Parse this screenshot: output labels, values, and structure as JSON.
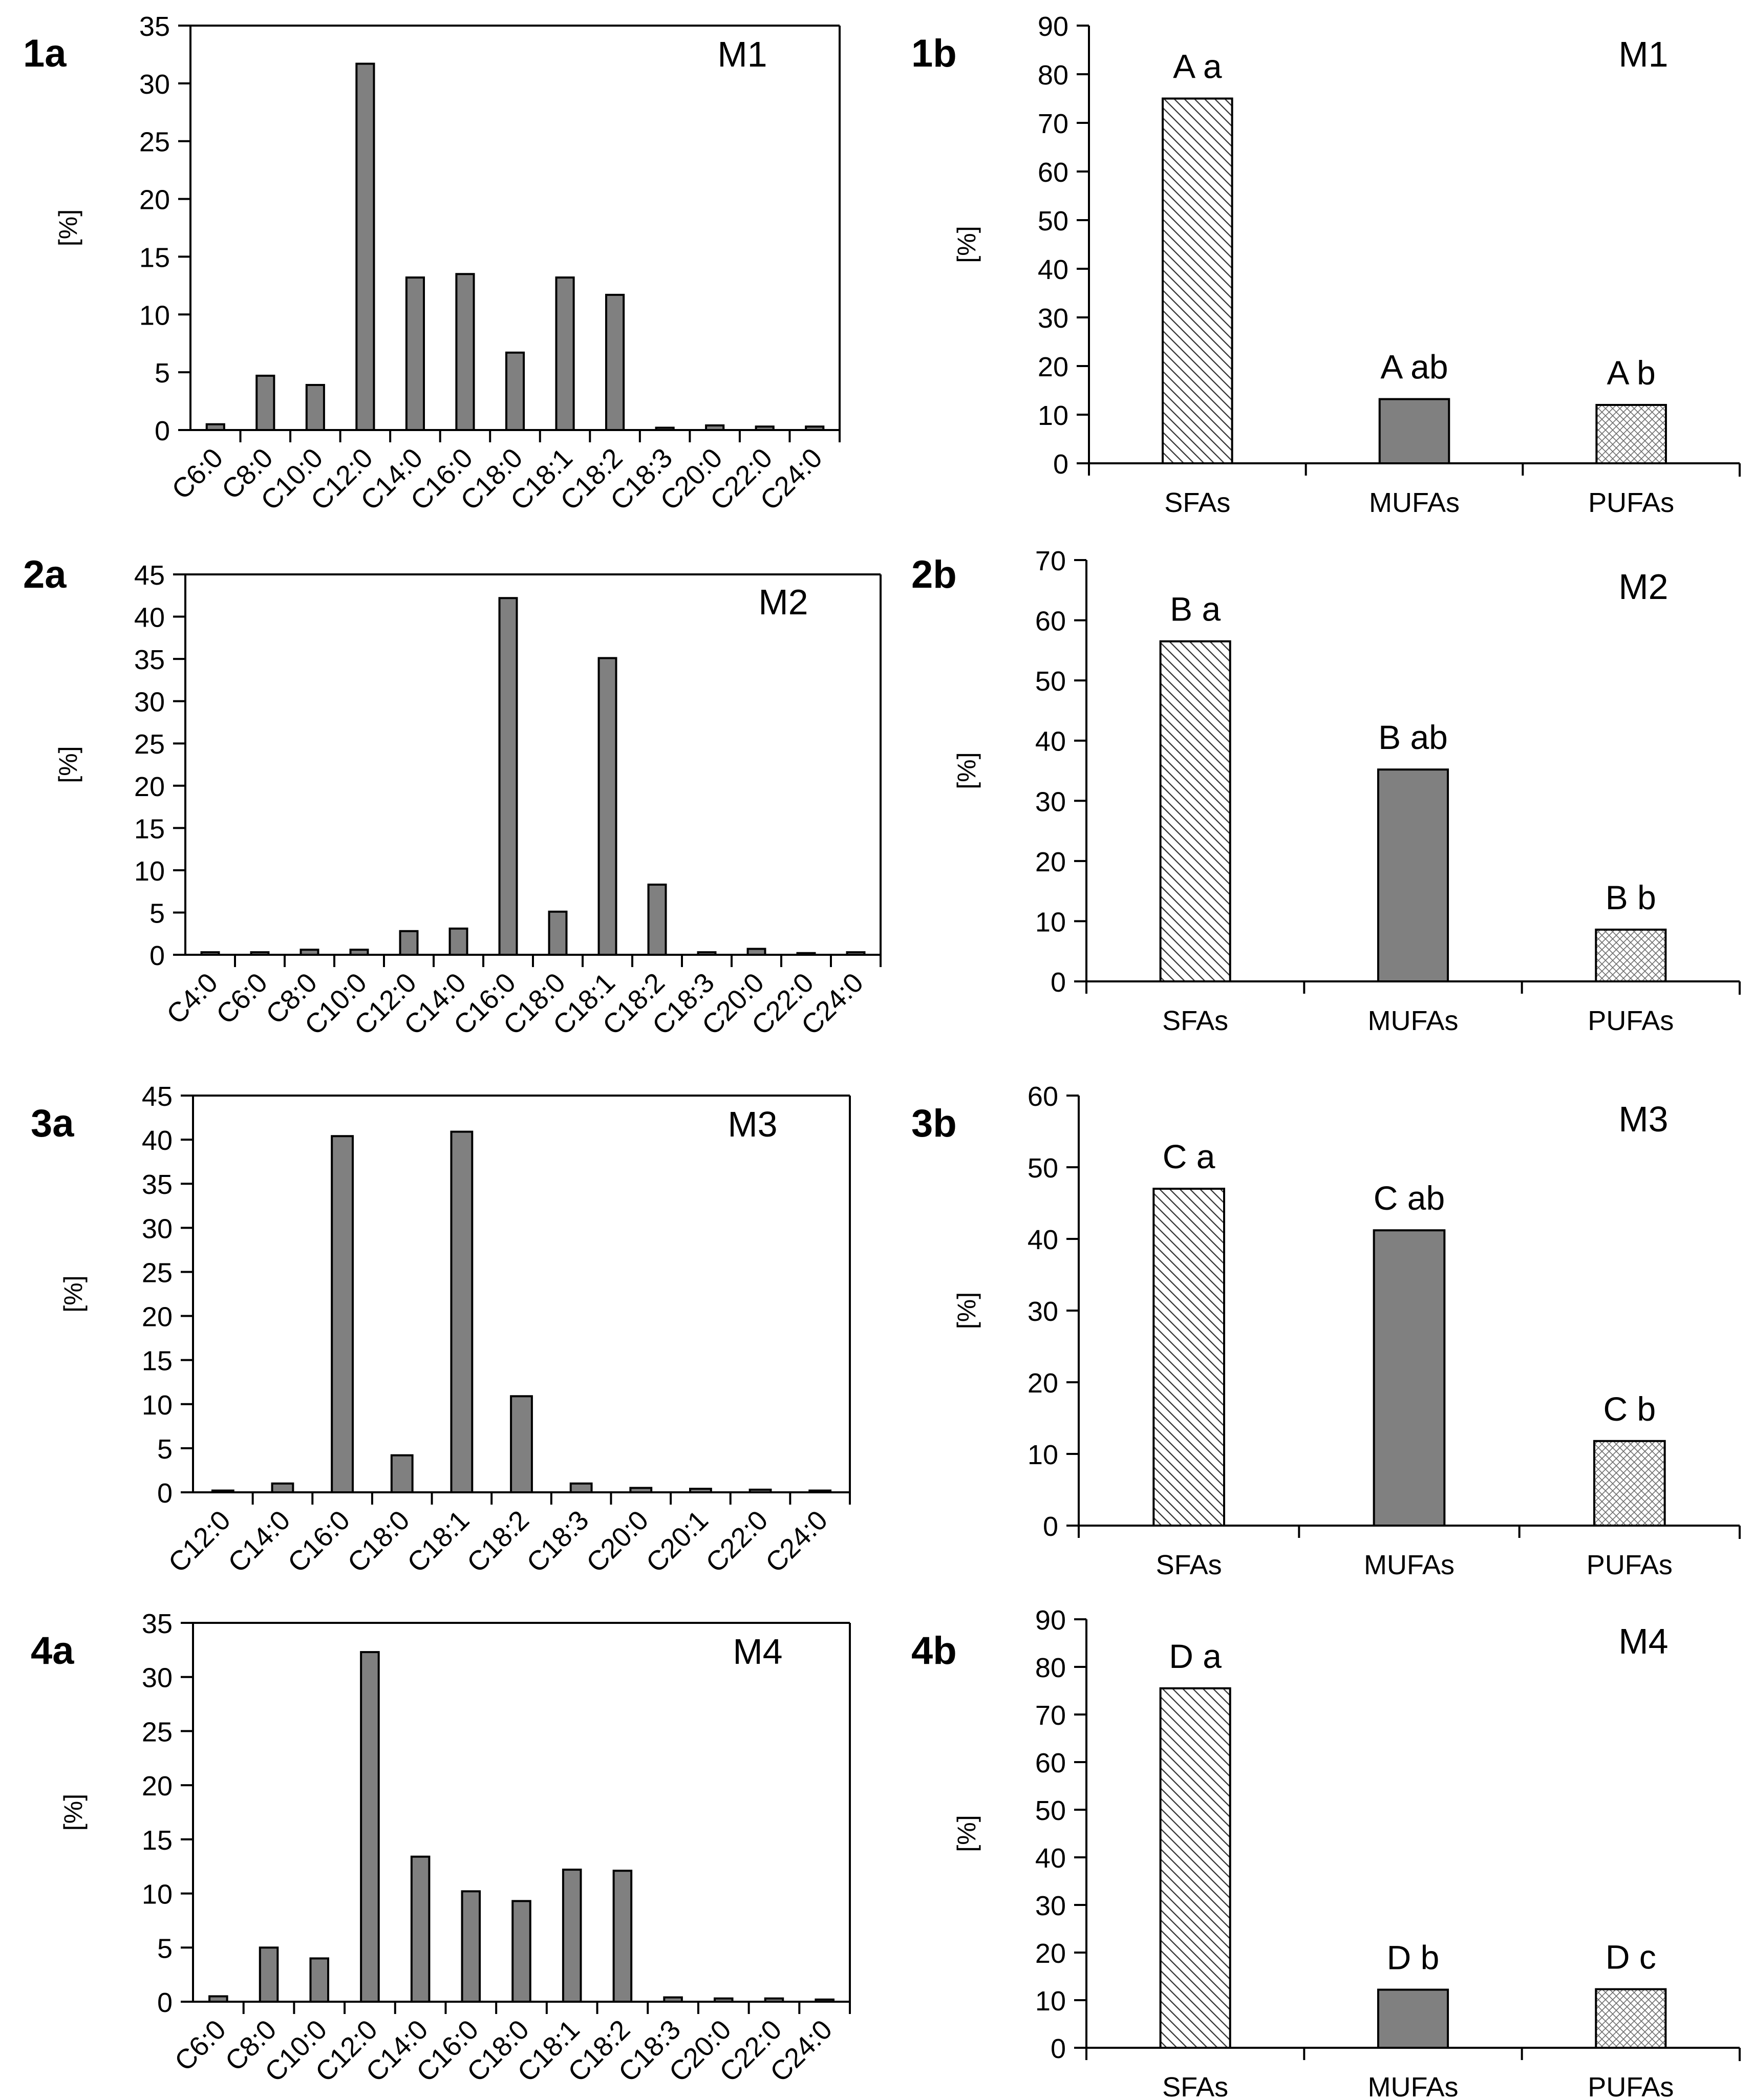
{
  "colors": {
    "bar_fill": "#808080",
    "bar_stroke": "#000000",
    "axis": "#000000",
    "background": "#ffffff"
  },
  "chart_data": [
    {
      "panel": "1a",
      "type": "bar",
      "title": "M1",
      "ylabel": "[%]",
      "ylim": [
        0,
        35
      ],
      "yticks": [
        0,
        5,
        10,
        15,
        20,
        25,
        30,
        35
      ],
      "categories": [
        "C6:0",
        "C8:0",
        "C10:0",
        "C12:0",
        "C14:0",
        "C16:0",
        "C18:0",
        "C18:1",
        "C18:2",
        "C18:3",
        "C20:0",
        "C22:0",
        "C24:0"
      ],
      "values": [
        0.5,
        4.7,
        3.9,
        31.7,
        13.2,
        13.5,
        6.7,
        13.2,
        11.7,
        0.2,
        0.4,
        0.3,
        0.3
      ]
    },
    {
      "panel": "1b",
      "type": "bar",
      "title": "M1",
      "ylabel": "[%]",
      "ylim": [
        0,
        90
      ],
      "yticks": [
        0,
        10,
        20,
        30,
        40,
        50,
        60,
        70,
        80,
        90
      ],
      "categories": [
        "SFAs",
        "MUFAs",
        "PUFAs"
      ],
      "values": [
        75,
        13.2,
        12
      ],
      "patterns": [
        "hatch",
        "solid",
        "dots"
      ],
      "annotations": [
        "A a",
        "A ab",
        "A b"
      ]
    },
    {
      "panel": "2a",
      "type": "bar",
      "title": "M2",
      "ylabel": "[%]",
      "ylim": [
        0,
        45
      ],
      "yticks": [
        0,
        5,
        10,
        15,
        20,
        25,
        30,
        35,
        40,
        45
      ],
      "categories": [
        "C4:0",
        "C6:0",
        "C8:0",
        "C10:0",
        "C12:0",
        "C14:0",
        "C16:0",
        "C18:0",
        "C18:1",
        "C18:2",
        "C18:3",
        "C20:0",
        "C22:0",
        "C24:0"
      ],
      "values": [
        0.3,
        0.3,
        0.6,
        0.6,
        2.8,
        3.1,
        42.2,
        5.1,
        35.1,
        8.3,
        0.3,
        0.7,
        0.2,
        0.3
      ]
    },
    {
      "panel": "2b",
      "type": "bar",
      "title": "M2",
      "ylabel": "[%]",
      "ylim": [
        0,
        70
      ],
      "yticks": [
        0,
        10,
        20,
        30,
        40,
        50,
        60,
        70
      ],
      "categories": [
        "SFAs",
        "MUFAs",
        "PUFAs"
      ],
      "values": [
        56.5,
        35.2,
        8.6
      ],
      "patterns": [
        "hatch",
        "solid",
        "dots"
      ],
      "annotations": [
        "B a",
        "B ab",
        "B b"
      ]
    },
    {
      "panel": "3a",
      "type": "bar",
      "title": "M3",
      "ylabel": "[%]",
      "ylim": [
        0,
        45
      ],
      "yticks": [
        0,
        5,
        10,
        15,
        20,
        25,
        30,
        35,
        40,
        45
      ],
      "categories": [
        "C12:0",
        "C14:0",
        "C16:0",
        "C18:0",
        "C18:1",
        "C18:2",
        "C18:3",
        "C20:0",
        "C20:1",
        "C22:0",
        "C24:0"
      ],
      "values": [
        0.2,
        1.0,
        40.4,
        4.2,
        40.9,
        10.9,
        1.0,
        0.5,
        0.4,
        0.3,
        0.2
      ]
    },
    {
      "panel": "3b",
      "type": "bar",
      "title": "M3",
      "ylabel": "[%]",
      "ylim": [
        0,
        60
      ],
      "yticks": [
        0,
        10,
        20,
        30,
        40,
        50,
        60
      ],
      "categories": [
        "SFAs",
        "MUFAs",
        "PUFAs"
      ],
      "values": [
        47,
        41.2,
        11.8
      ],
      "patterns": [
        "hatch",
        "solid",
        "dots"
      ],
      "annotations": [
        "C a",
        "C ab",
        "C b"
      ]
    },
    {
      "panel": "4a",
      "type": "bar",
      "title": "M4",
      "ylabel": "[%]",
      "ylim": [
        0,
        35
      ],
      "yticks": [
        0,
        5,
        10,
        15,
        20,
        25,
        30,
        35
      ],
      "categories": [
        "C6:0",
        "C8:0",
        "C10:0",
        "C12:0",
        "C14:0",
        "C16:0",
        "C18:0",
        "C18:1",
        "C18:2",
        "C18:3",
        "C20:0",
        "C22:0",
        "C24:0"
      ],
      "values": [
        0.5,
        5.0,
        4.0,
        32.3,
        13.4,
        10.2,
        9.3,
        12.2,
        12.1,
        0.4,
        0.3,
        0.3,
        0.2
      ]
    },
    {
      "panel": "4b",
      "type": "bar",
      "title": "M4",
      "ylabel": "[%]",
      "ylim": [
        0,
        90
      ],
      "yticks": [
        0,
        10,
        20,
        30,
        40,
        50,
        60,
        70,
        80,
        90
      ],
      "categories": [
        "SFAs",
        "MUFAs",
        "PUFAs"
      ],
      "values": [
        75.5,
        12.2,
        12.3
      ],
      "patterns": [
        "hatch",
        "solid",
        "dots"
      ],
      "annotations": [
        "D a",
        "D b",
        "D c"
      ]
    }
  ]
}
